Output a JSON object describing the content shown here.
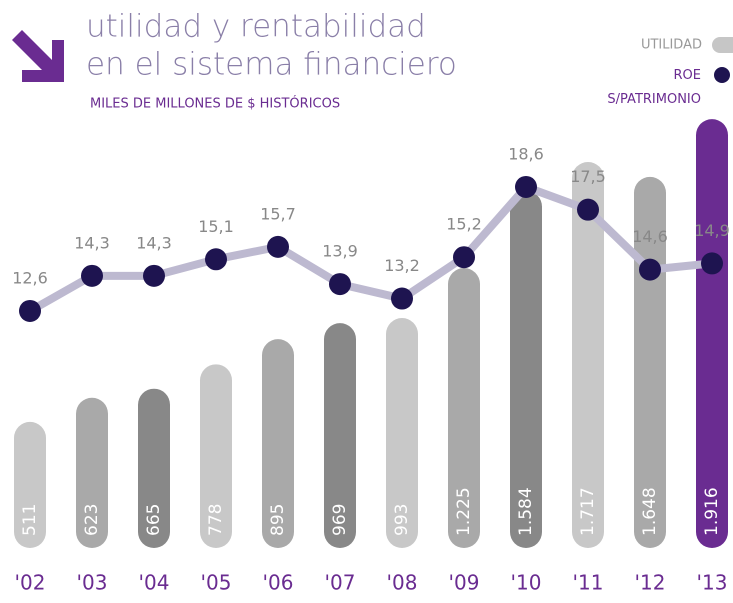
{
  "chart_data": {
    "type": "bar-line",
    "title": [
      "utilidad y rentabilidad",
      "en el sistema financiero"
    ],
    "subtitle": "MILES DE MILLONES DE $ HISTÓRICOS",
    "categories": [
      "'02",
      "'03",
      "'04",
      "'05",
      "'06",
      "'07",
      "'08",
      "'09",
      "'10",
      "'11",
      "'12",
      "'13"
    ],
    "series": [
      {
        "name": "UTILIDAD",
        "type": "bar",
        "color": "#c6c6c6",
        "colors": [
          "#c8c8c8",
          "#a9a9a9",
          "#888888",
          "#c8c8c8",
          "#a9a9a9",
          "#888888",
          "#c8c8c8",
          "#a9a9a9",
          "#888888",
          "#c8c8c8",
          "#a9a9a9",
          "#6a2c91"
        ],
        "values": [
          511,
          623,
          665,
          778,
          895,
          969,
          993,
          1225,
          1584,
          1717,
          1648,
          1916
        ],
        "value_labels": [
          "511",
          "623",
          "665",
          "778",
          "895",
          "969",
          "993",
          "1.225",
          "1.584",
          "1.717",
          "1.648",
          "1.916"
        ]
      },
      {
        "name": "ROE\nS/PATRIMONIO",
        "type": "line",
        "color": "#1e1450",
        "line_color": "#bdb9d0",
        "values": [
          12.6,
          14.3,
          14.3,
          15.1,
          15.7,
          13.9,
          13.2,
          15.2,
          18.6,
          17.5,
          14.6,
          14.9
        ],
        "value_labels": [
          "12,6",
          "14,3",
          "14,3",
          "15,1",
          "15,7",
          "13,9",
          "13,2",
          "15,2",
          "18,6",
          "17,5",
          "14,6",
          "14,9"
        ]
      }
    ]
  }
}
